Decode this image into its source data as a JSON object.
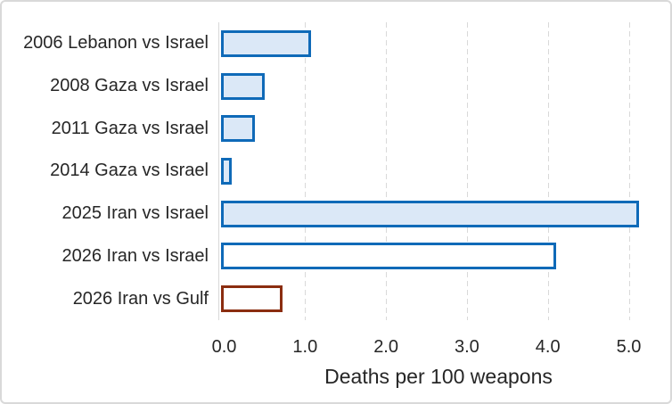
{
  "chart_data": {
    "type": "bar",
    "orientation": "horizontal",
    "title": "",
    "xlabel": "Deaths per 100 weapons",
    "categories": [
      "2006 Lebanon vs Israel",
      "2008 Gaza vs Israel",
      "2011 Gaza vs Israel",
      "2014 Gaza vs Israel",
      "2025 Iran vs Israel",
      "2026 Iran vs Israel",
      "2026 Iran vs Gulf"
    ],
    "values": [
      1.07,
      0.5,
      0.38,
      0.09,
      5.13,
      4.1,
      0.72
    ],
    "xlim": [
      0,
      5.4
    ],
    "xticks": [
      0.0,
      1.0,
      2.0,
      3.0,
      4.0,
      5.0
    ],
    "xtick_labels": [
      "0.0",
      "1.0",
      "2.0",
      "3.0",
      "4.0",
      "5.0"
    ],
    "grid": "vertical-dashed",
    "legend": "none",
    "bar_fills": [
      "#dbe8f7",
      "#dbe8f7",
      "#dbe8f7",
      "#dbe8f7",
      "#dbe8f7",
      "#ffffff",
      "#ffffff"
    ],
    "bar_strokes": [
      "#0f6ab8",
      "#0f6ab8",
      "#0f6ab8",
      "#0f6ab8",
      "#0f6ab8",
      "#0f6ab8",
      "#8b2d10"
    ],
    "colors": {
      "blue_stroke": "#0f6ab8",
      "blue_fill": "#dbe8f7",
      "white_fill": "#ffffff",
      "brown_stroke": "#8b2d10",
      "grid": "#d9d9d9",
      "text": "#262626",
      "figure_border": "#d9d9d9"
    }
  }
}
